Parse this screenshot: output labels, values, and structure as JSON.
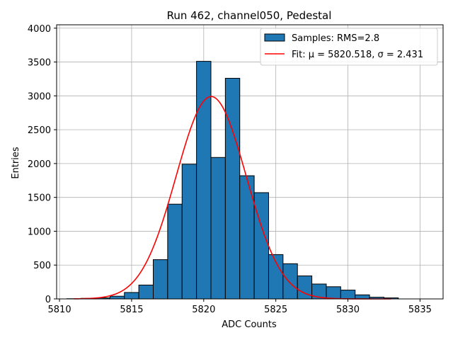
{
  "chart_data": {
    "type": "bar",
    "title": "Run 462, channel050, Pedestal",
    "xlabel": "ADC Counts",
    "ylabel": "Entries",
    "xlim": [
      5809.8,
      5836.6
    ],
    "ylim": [
      0,
      4050
    ],
    "xticks": [
      5810,
      5815,
      5820,
      5825,
      5830,
      5835
    ],
    "yticks": [
      0,
      500,
      1000,
      1500,
      2000,
      2500,
      3000,
      3500,
      4000
    ],
    "grid": true,
    "legend_position": "top-right",
    "bin_width": 1,
    "bins": [
      {
        "x": 5811,
        "value": 3
      },
      {
        "x": 5812,
        "value": 8
      },
      {
        "x": 5813,
        "value": 15
      },
      {
        "x": 5814,
        "value": 40
      },
      {
        "x": 5815,
        "value": 95
      },
      {
        "x": 5816,
        "value": 205
      },
      {
        "x": 5817,
        "value": 580
      },
      {
        "x": 5818,
        "value": 1400
      },
      {
        "x": 5819,
        "value": 1990
      },
      {
        "x": 5820,
        "value": 3510
      },
      {
        "x": 5821,
        "value": 2090
      },
      {
        "x": 5822,
        "value": 3260
      },
      {
        "x": 5823,
        "value": 1820
      },
      {
        "x": 5824,
        "value": 1570
      },
      {
        "x": 5825,
        "value": 655
      },
      {
        "x": 5826,
        "value": 520
      },
      {
        "x": 5827,
        "value": 340
      },
      {
        "x": 5828,
        "value": 220
      },
      {
        "x": 5829,
        "value": 180
      },
      {
        "x": 5830,
        "value": 130
      },
      {
        "x": 5831,
        "value": 60
      },
      {
        "x": 5832,
        "value": 25
      },
      {
        "x": 5833,
        "value": 15
      }
    ],
    "fit": {
      "type": "gaussian",
      "mu": 5820.518,
      "sigma": 2.431,
      "amplitude": 2990,
      "x_range": [
        5811,
        5833
      ]
    },
    "series": [
      {
        "name": "Samples: RMS=2.8",
        "kind": "histogram",
        "color": "#1f77b4",
        "edge_color": "#000000"
      },
      {
        "name": "Fit: μ = 5820.518, σ = 2.431",
        "kind": "line",
        "color": "#ff0000"
      }
    ]
  }
}
